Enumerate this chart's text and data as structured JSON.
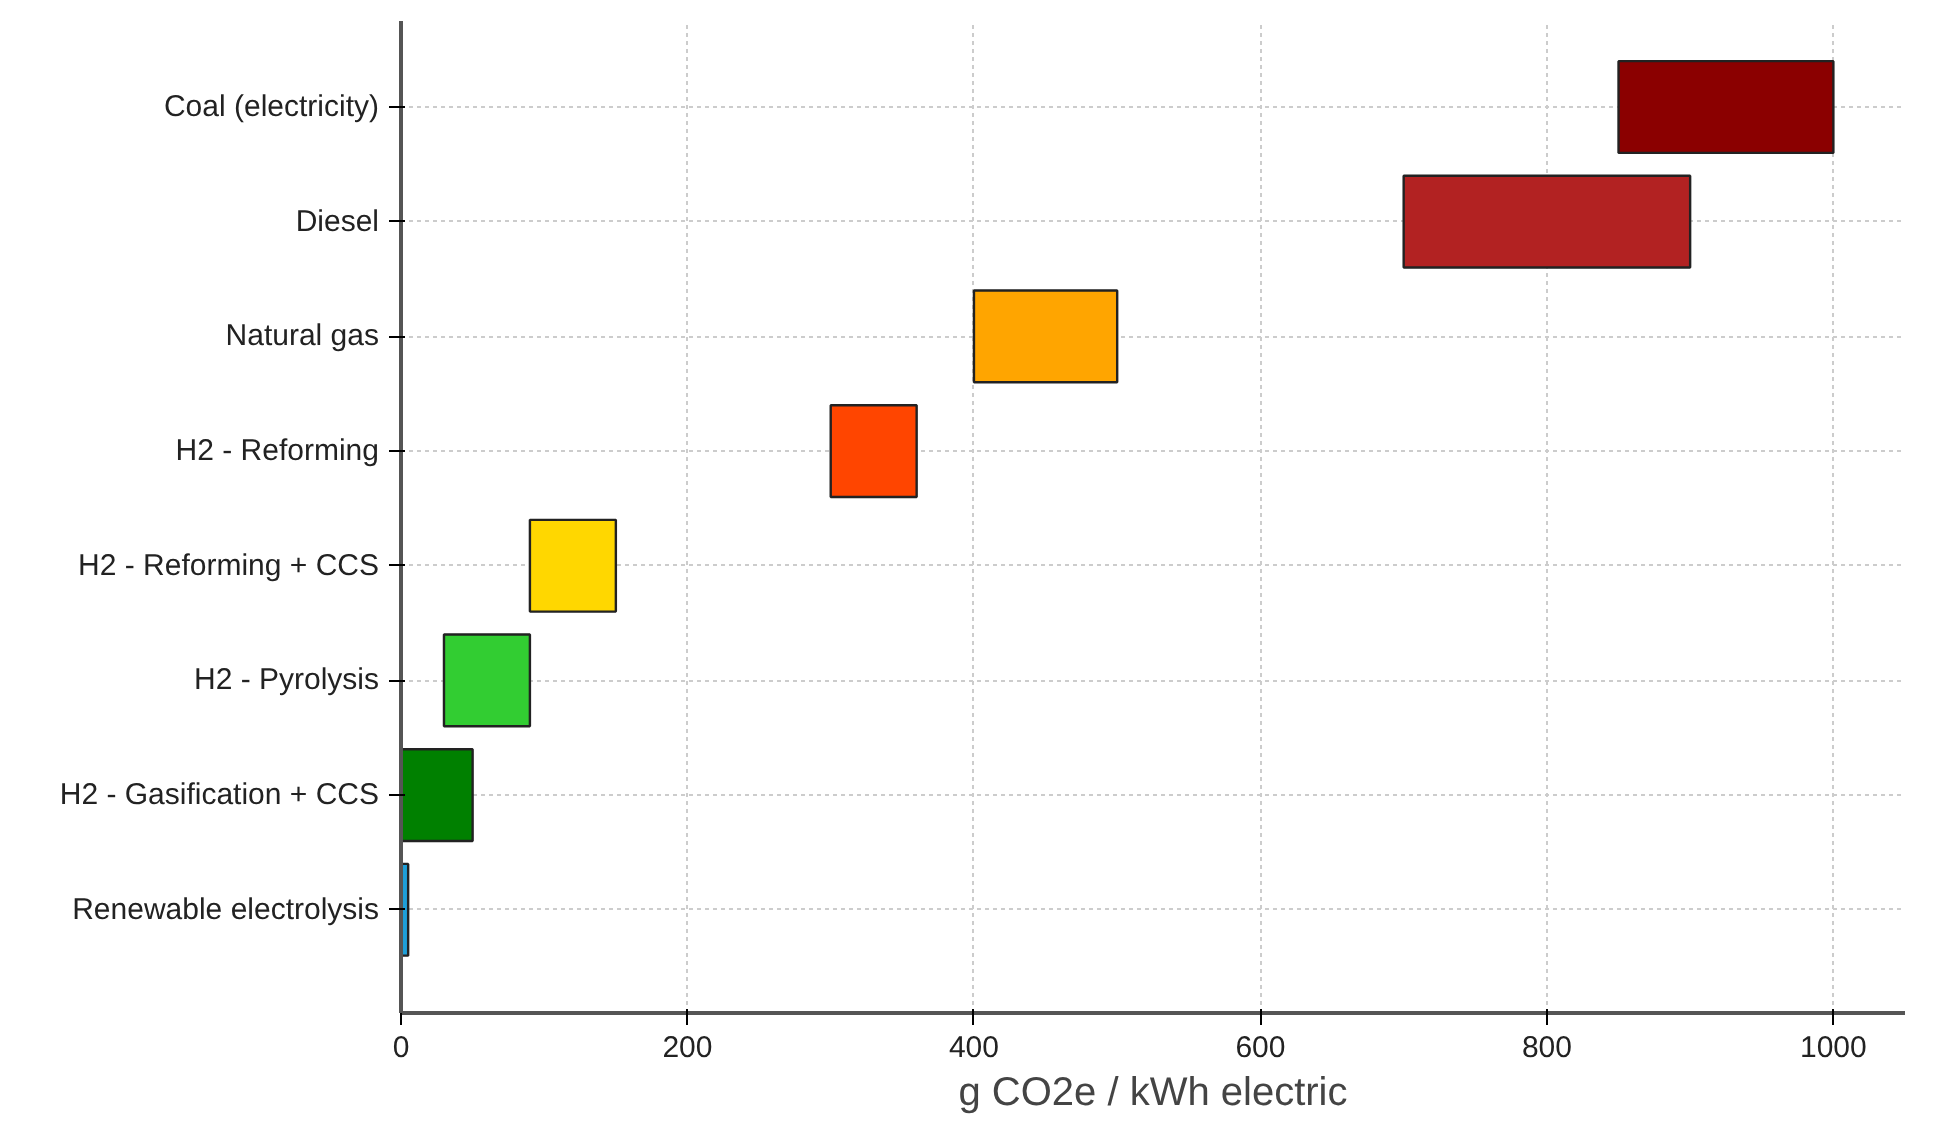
{
  "chart_data": {
    "type": "bar",
    "orientation": "horizontal",
    "xlabel": "g CO2e / kWh electric",
    "categories": [
      "Coal (electricity)",
      "Diesel",
      "Natural gas",
      "H2 - Reforming",
      "H2 - Reforming + CCS",
      "H2 - Pyrolysis",
      "H2 - Gasification + CCS",
      "Renewable electrolysis"
    ],
    "base": [
      850,
      700,
      400,
      300,
      90,
      30,
      0,
      0
    ],
    "values": [
      150,
      200,
      100,
      60,
      60,
      60,
      50,
      5
    ],
    "colors": [
      "#8b0000",
      "#b22222",
      "#ffa500",
      "#ff4500",
      "#ffd700",
      "#32cd32",
      "#008000",
      "#1e9fd8"
    ],
    "xlim": [
      0,
      1050
    ],
    "xticks": [
      0,
      200,
      400,
      600,
      800,
      1000
    ],
    "grid": true
  }
}
